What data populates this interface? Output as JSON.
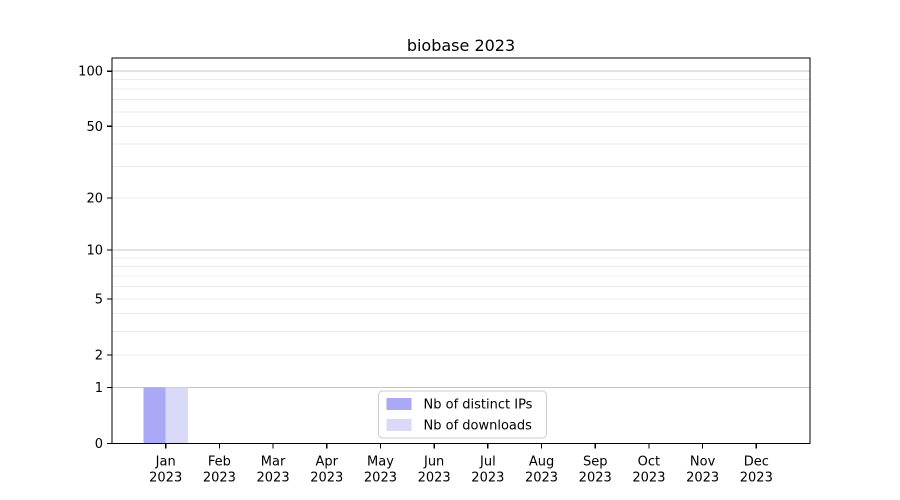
{
  "figure": {
    "title": "biobase 2023",
    "background": "#ffffff"
  },
  "chart_data": {
    "type": "bar",
    "title": "biobase 2023",
    "categories": [
      "Jan",
      "Feb",
      "Mar",
      "Apr",
      "May",
      "Jun",
      "Jul",
      "Aug",
      "Sep",
      "Oct",
      "Nov",
      "Dec"
    ],
    "x_tick_year": "2023",
    "series": [
      {
        "name": "Nb of distinct IPs",
        "color": "#a9a9f5",
        "values": [
          1,
          0,
          0,
          0,
          0,
          0,
          0,
          0,
          0,
          0,
          0,
          0
        ]
      },
      {
        "name": "Nb of downloads",
        "color": "#d9d9f8",
        "values": [
          1,
          0,
          0,
          0,
          0,
          0,
          0,
          0,
          0,
          0,
          0,
          0
        ]
      }
    ],
    "xlabel": "",
    "ylabel": "",
    "yscale": "log1p",
    "ylim": [
      0,
      118
    ],
    "y_ticks": [
      0,
      1,
      2,
      5,
      10,
      20,
      50,
      100
    ],
    "y_major_gridlines": [
      1,
      10,
      100
    ],
    "y_minor_gridlines": [
      2,
      3,
      4,
      5,
      6,
      7,
      8,
      9,
      20,
      30,
      40,
      50,
      60,
      70,
      80,
      90
    ],
    "grid": "on",
    "legend": {
      "position": "lower-center",
      "entries": [
        "Nb of distinct IPs",
        "Nb of downloads"
      ]
    }
  },
  "colors": {
    "spine": "#000000",
    "grid_major": "#c4c4c4",
    "grid_minor": "#ececec",
    "text": "#000000",
    "legend_border": "#cccccc",
    "legend_background": "#ffffff"
  }
}
